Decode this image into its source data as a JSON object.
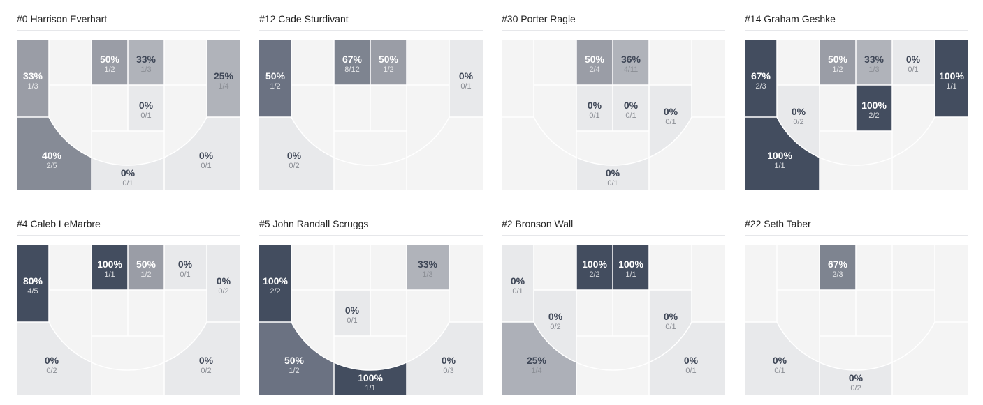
{
  "colors": {
    "empty": "#f4f4f4",
    "zero": "#e8e9eb",
    "line": "#ffffff",
    "dark_text": "#3f4757",
    "light_sub": "#8a8d94"
  },
  "players": [
    {
      "title": "#0 Harrison Everhart",
      "zones": [
        {
          "id": "lc",
          "pct": "33%",
          "made": "1/3",
          "fill": "#9a9da6"
        },
        {
          "id": "ptl",
          "pct": "50%",
          "made": "1/2",
          "fill": "#9a9da6"
        },
        {
          "id": "ptr",
          "pct": "33%",
          "made": "1/3",
          "fill": "#b0b3ba"
        },
        {
          "id": "rc",
          "pct": "25%",
          "made": "1/4",
          "fill": "#b0b3ba"
        },
        {
          "id": "pbr",
          "pct": "0%",
          "made": "0/1",
          "fill": "#e8e9eb"
        },
        {
          "id": "lw",
          "pct": "40%",
          "made": "2/5",
          "fill": "#868b96"
        },
        {
          "id": "c3",
          "pct": "0%",
          "made": "0/1",
          "fill": "#e8e9eb"
        },
        {
          "id": "rw",
          "pct": "0%",
          "made": "0/1",
          "fill": "#e8e9eb"
        }
      ]
    },
    {
      "title": "#12 Cade Sturdivant",
      "zones": [
        {
          "id": "lc",
          "pct": "50%",
          "made": "1/2",
          "fill": "#6b7282"
        },
        {
          "id": "ptl",
          "pct": "67%",
          "made": "8/12",
          "fill": "#7e8490"
        },
        {
          "id": "ptr",
          "pct": "50%",
          "made": "1/2",
          "fill": "#9a9da6"
        },
        {
          "id": "rc",
          "pct": "0%",
          "made": "0/1",
          "fill": "#e8e9eb"
        },
        {
          "id": "lw",
          "pct": "0%",
          "made": "0/2",
          "fill": "#e8e9eb"
        }
      ]
    },
    {
      "title": "#30 Porter Ragle",
      "zones": [
        {
          "id": "ptl",
          "pct": "50%",
          "made": "2/4",
          "fill": "#9a9da6"
        },
        {
          "id": "ptr",
          "pct": "36%",
          "made": "4/11",
          "fill": "#b0b3ba"
        },
        {
          "id": "pbl",
          "pct": "0%",
          "made": "0/1",
          "fill": "#e8e9eb"
        },
        {
          "id": "pbr",
          "pct": "0%",
          "made": "0/1",
          "fill": "#e8e9eb"
        },
        {
          "id": "rml",
          "pct": "0%",
          "made": "0/1",
          "fill": "#e8e9eb"
        },
        {
          "id": "c3",
          "pct": "0%",
          "made": "0/1",
          "fill": "#e8e9eb"
        }
      ]
    },
    {
      "title": "#14 Graham Geshke",
      "zones": [
        {
          "id": "lc",
          "pct": "67%",
          "made": "2/3",
          "fill": "#434d5f"
        },
        {
          "id": "ptl",
          "pct": "50%",
          "made": "1/2",
          "fill": "#9a9da6"
        },
        {
          "id": "ptr",
          "pct": "33%",
          "made": "1/3",
          "fill": "#b0b3ba"
        },
        {
          "id": "rmt",
          "pct": "0%",
          "made": "0/1",
          "fill": "#e8e9eb"
        },
        {
          "id": "rc",
          "pct": "100%",
          "made": "1/1",
          "fill": "#434d5f"
        },
        {
          "id": "lml",
          "pct": "0%",
          "made": "0/2",
          "fill": "#e8e9eb"
        },
        {
          "id": "pbr",
          "pct": "100%",
          "made": "2/2",
          "fill": "#434d5f"
        },
        {
          "id": "lw",
          "pct": "100%",
          "made": "1/1",
          "fill": "#434d5f"
        }
      ]
    },
    {
      "title": "#4 Caleb LeMarbre",
      "zones": [
        {
          "id": "lc",
          "pct": "80%",
          "made": "4/5",
          "fill": "#434d5f"
        },
        {
          "id": "ptl",
          "pct": "100%",
          "made": "1/1",
          "fill": "#434d5f"
        },
        {
          "id": "ptr",
          "pct": "50%",
          "made": "1/2",
          "fill": "#9a9da6"
        },
        {
          "id": "rmt",
          "pct": "0%",
          "made": "0/1",
          "fill": "#e8e9eb"
        },
        {
          "id": "rc",
          "pct": "0%",
          "made": "0/2",
          "fill": "#e8e9eb"
        },
        {
          "id": "lw",
          "pct": "0%",
          "made": "0/2",
          "fill": "#e8e9eb"
        },
        {
          "id": "rw",
          "pct": "0%",
          "made": "0/2",
          "fill": "#e8e9eb"
        }
      ]
    },
    {
      "title": "#5 John Randall Scruggs",
      "zones": [
        {
          "id": "lc",
          "pct": "100%",
          "made": "2/2",
          "fill": "#434d5f"
        },
        {
          "id": "rmt",
          "pct": "33%",
          "made": "1/3",
          "fill": "#b0b3ba"
        },
        {
          "id": "pbl",
          "pct": "0%",
          "made": "0/1",
          "fill": "#e8e9eb"
        },
        {
          "id": "lw",
          "pct": "50%",
          "made": "1/2",
          "fill": "#6b7282"
        },
        {
          "id": "c3",
          "pct": "100%",
          "made": "1/1",
          "fill": "#434d5f"
        },
        {
          "id": "rw",
          "pct": "0%",
          "made": "0/3",
          "fill": "#e8e9eb"
        }
      ]
    },
    {
      "title": "#2 Bronson Wall",
      "zones": [
        {
          "id": "lc",
          "pct": "0%",
          "made": "0/1",
          "fill": "#e8e9eb"
        },
        {
          "id": "ptl",
          "pct": "100%",
          "made": "2/2",
          "fill": "#434d5f"
        },
        {
          "id": "ptr",
          "pct": "100%",
          "made": "1/1",
          "fill": "#434d5f"
        },
        {
          "id": "lml",
          "pct": "0%",
          "made": "0/2",
          "fill": "#e8e9eb"
        },
        {
          "id": "rml",
          "pct": "0%",
          "made": "0/1",
          "fill": "#e8e9eb"
        },
        {
          "id": "lw",
          "pct": "25%",
          "made": "1/4",
          "fill": "#adb0b8"
        },
        {
          "id": "rw",
          "pct": "0%",
          "made": "0/1",
          "fill": "#e8e9eb"
        }
      ]
    },
    {
      "title": "#22 Seth Taber",
      "zones": [
        {
          "id": "ptl",
          "pct": "67%",
          "made": "2/3",
          "fill": "#7e8490"
        },
        {
          "id": "lw",
          "pct": "0%",
          "made": "0/1",
          "fill": "#e8e9eb"
        },
        {
          "id": "c3",
          "pct": "0%",
          "made": "0/2",
          "fill": "#e8e9eb"
        }
      ]
    }
  ]
}
